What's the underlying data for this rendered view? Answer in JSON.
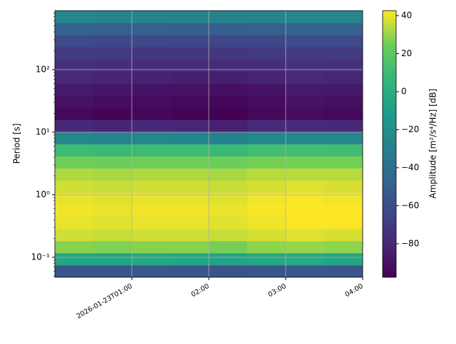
{
  "chart_data": {
    "type": "spectrogram",
    "ylabel": "Period [s]",
    "colorbar_label": "Amplitude [m²/s⁴/Hz] [dB]",
    "colormap": "viridis",
    "yscale": "log",
    "grid": true,
    "xlim": [
      "2026-01-23T00:00",
      "2026-01-23T04:00"
    ],
    "xticks": [
      {
        "value": "2026-01-23T01:00",
        "label": "2026-01-23T01:00"
      },
      {
        "value": "2026-01-23T02:00",
        "label": "02:00"
      },
      {
        "value": "2026-01-23T03:00",
        "label": "03:00"
      },
      {
        "value": "2026-01-23T04:00",
        "label": "04:00"
      }
    ],
    "ylim": [
      0.0481,
      877
    ],
    "yticks": [
      {
        "value": 0.1,
        "label": "10⁻¹"
      },
      {
        "value": 1,
        "label": "10⁰"
      },
      {
        "value": 10,
        "label": "10¹"
      },
      {
        "value": 100,
        "label": "10²"
      }
    ],
    "clim": [
      -97.6,
      42.6
    ],
    "cticks": [
      {
        "value": -80,
        "label": "−80"
      },
      {
        "value": -60,
        "label": "−60"
      },
      {
        "value": -40,
        "label": "−40"
      },
      {
        "value": -20,
        "label": "−20"
      },
      0,
      20,
      40
    ],
    "x_edges": [
      "2026-01-23T00:00",
      "2026-01-23T00:30",
      "2026-01-23T01:00",
      "2026-01-23T01:30",
      "2026-01-23T02:00",
      "2026-01-23T02:30",
      "2026-01-23T03:00",
      "2026-01-23T03:30",
      "2026-01-23T04:00"
    ],
    "y_edges": [
      0.0481,
      0.0751,
      0.1173,
      0.1833,
      0.2862,
      0.4472,
      0.6984,
      1.091,
      1.704,
      2.663,
      4.159,
      6.496,
      10.15,
      15.86,
      24.76,
      38.68,
      60.42,
      94.39,
      147.4,
      230.3,
      359.8,
      561.9,
      877
    ],
    "values": [
      [
        -55,
        -56,
        -54,
        -55,
        -57,
        -55,
        -54,
        -56
      ],
      [
        -5,
        -6,
        -4,
        -5,
        -7,
        -4,
        -3,
        -5
      ],
      [
        28,
        27,
        28,
        28,
        26,
        29,
        30,
        29
      ],
      [
        37,
        36,
        37,
        37,
        36,
        38,
        39,
        38
      ],
      [
        40,
        39,
        40,
        40,
        39,
        41,
        42,
        42
      ],
      [
        41,
        40,
        41,
        41,
        40,
        42,
        43,
        43
      ],
      [
        40,
        39,
        40,
        40,
        39,
        41,
        42,
        41
      ],
      [
        37,
        36,
        37,
        37,
        36,
        38,
        39,
        38
      ],
      [
        33,
        32,
        33,
        33,
        32,
        34,
        34,
        34
      ],
      [
        25,
        24,
        25,
        25,
        24,
        26,
        26,
        26
      ],
      [
        10,
        9,
        10,
        10,
        9,
        11,
        11,
        11
      ],
      [
        -25,
        -27,
        -25,
        -26,
        -28,
        -24,
        -24,
        -25
      ],
      [
        -80,
        -82,
        -80,
        -81,
        -83,
        -79,
        -79,
        -80
      ],
      [
        -94,
        -96,
        -95,
        -96,
        -97,
        -94,
        -93,
        -94
      ],
      [
        -90,
        -92,
        -93,
        -94,
        -95,
        -93,
        -90,
        -91
      ],
      [
        -86,
        -88,
        -89,
        -90,
        -91,
        -89,
        -86,
        -87
      ],
      [
        -80,
        -82,
        -83,
        -84,
        -84,
        -82,
        -80,
        -81
      ],
      [
        -76,
        -77,
        -78,
        -78,
        -78,
        -77,
        -75,
        -76
      ],
      [
        -70,
        -71,
        -72,
        -72,
        -72,
        -71,
        -70,
        -70
      ],
      [
        -62,
        -63,
        -63,
        -64,
        -64,
        -63,
        -62,
        -62
      ],
      [
        -48,
        -49,
        -49,
        -50,
        -50,
        -49,
        -48,
        -48
      ],
      [
        -25,
        -26,
        -26,
        -27,
        -27,
        -26,
        -25,
        -25
      ]
    ]
  }
}
